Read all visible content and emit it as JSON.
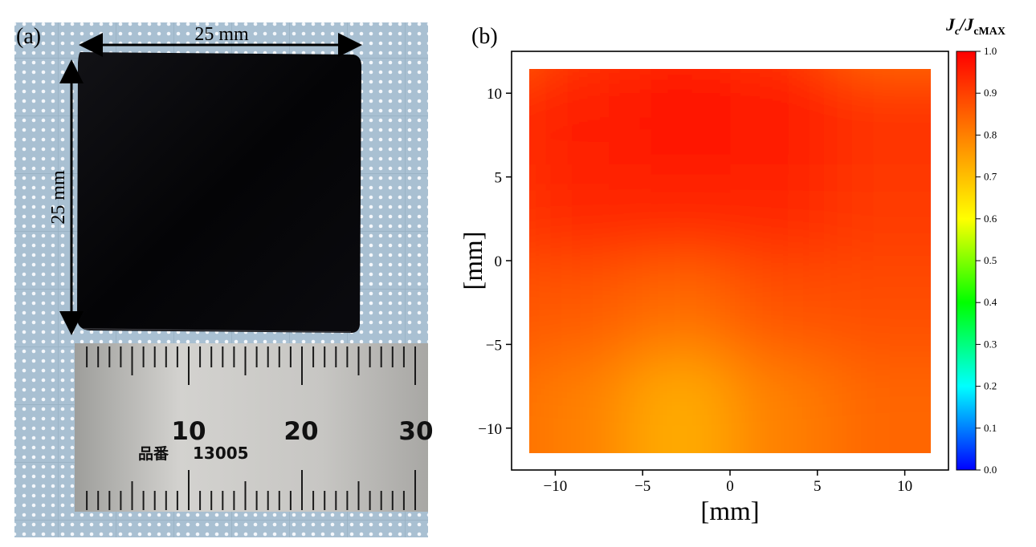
{
  "panel_a": {
    "label": "(a)",
    "width_label": "25 mm",
    "height_label": "25 mm",
    "ruler": {
      "numbers": [
        "10",
        "20",
        "30"
      ],
      "product_label": "品番",
      "product_number": "13005"
    }
  },
  "panel_b": {
    "label": "(b)"
  },
  "chart_data": {
    "type": "heatmap",
    "xlabel": "[mm]",
    "ylabel": "[mm]",
    "xlim": [
      -12.5,
      12.5
    ],
    "ylim": [
      -12.5,
      12.5
    ],
    "extent": {
      "x": [
        -11.5,
        11.5
      ],
      "y": [
        -11.5,
        11.5
      ]
    },
    "x_ticks": [
      -10,
      -5,
      0,
      5,
      10
    ],
    "y_ticks": [
      -10,
      -5,
      0,
      5,
      10
    ],
    "x_tick_labels": [
      "−10",
      "−5",
      "0",
      "5",
      "10"
    ],
    "y_tick_labels": [
      "−10",
      "−5",
      "0",
      "5",
      "10"
    ],
    "grid": false,
    "colorscale": "rainbow",
    "colorbar": {
      "title_main": "J",
      "title_sub1": "c",
      "title_mid": "/J",
      "title_sub2": "cMAX",
      "range": [
        0.0,
        1.0
      ],
      "ticks": [
        "0.0",
        "0.1",
        "0.2",
        "0.3",
        "0.4",
        "0.5",
        "0.6",
        "0.7",
        "0.8",
        "0.9",
        "1.0"
      ],
      "colors": [
        "#0000ff",
        "#00ffff",
        "#00ff00",
        "#ffff00",
        "#ff8000",
        "#ff0000"
      ]
    },
    "grid_values": {
      "x": [
        -11.5,
        -5.75,
        0,
        5.75,
        11.5
      ],
      "y": [
        11.5,
        5.75,
        0,
        -5.75,
        -11.5
      ],
      "z": [
        [
          0.82,
          0.91,
          0.93,
          0.91,
          0.82
        ],
        [
          0.92,
          0.96,
          0.98,
          0.97,
          0.92
        ],
        [
          0.91,
          0.94,
          0.94,
          0.94,
          0.91
        ],
        [
          0.87,
          0.86,
          0.83,
          0.87,
          0.88
        ],
        [
          0.84,
          0.8,
          0.73,
          0.8,
          0.84
        ]
      ]
    }
  }
}
